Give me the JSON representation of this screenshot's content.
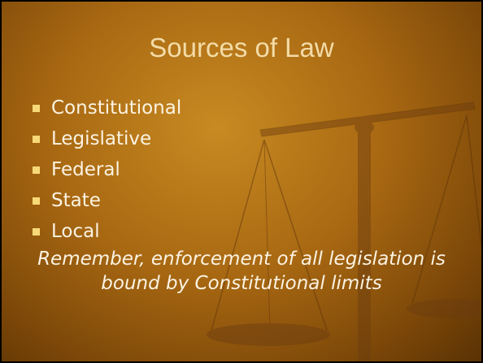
{
  "title": "Sources of Law",
  "bullets": [
    "Constitutional",
    "Legislative",
    "Federal",
    "State",
    "Local"
  ],
  "note": [
    "Remember, enforcement of all legislation is",
    "bound by Constitutional limits"
  ]
}
